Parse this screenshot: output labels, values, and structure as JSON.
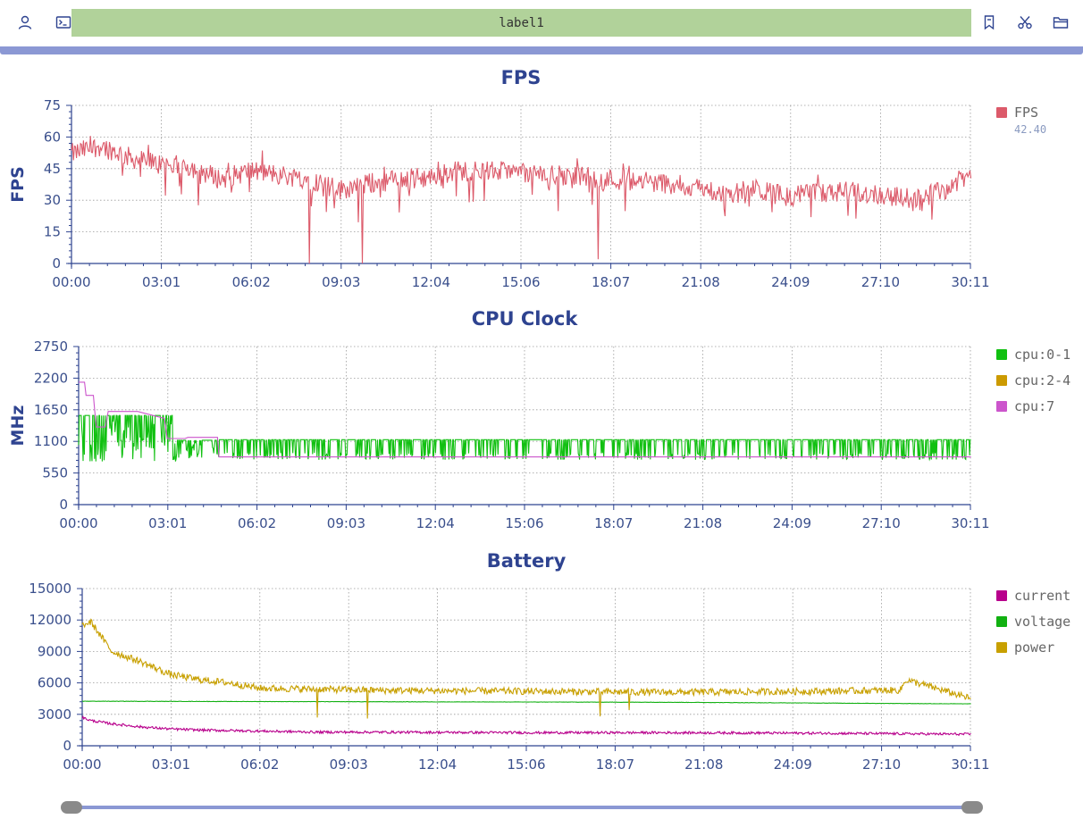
{
  "toolbar": {
    "label": "label1",
    "icons": [
      "user-icon",
      "terminal-icon",
      "bookmark-icon",
      "scissors-icon",
      "folder-icon"
    ]
  },
  "slider": {
    "start": 0.0,
    "end": 1.0
  },
  "chart_data": [
    {
      "type": "line",
      "title": "FPS",
      "ylabel": "FPS",
      "xlabel": "",
      "ylim": [
        0,
        75
      ],
      "yticks": [
        "0",
        "15",
        "30",
        "45",
        "60",
        "75"
      ],
      "xticks": [
        "00:00",
        "03:01",
        "06:02",
        "09:03",
        "12:04",
        "15:06",
        "18:07",
        "21:08",
        "24:09",
        "27:10",
        "30:11"
      ],
      "grid": true,
      "legend_position": "right",
      "series": [
        {
          "name": "FPS",
          "color": "#dc5a6a",
          "legend_value": "42.40",
          "x_minutes": [
            0,
            1,
            2,
            3,
            4,
            5,
            6,
            7,
            8,
            9,
            10,
            11,
            12,
            13,
            14,
            15,
            16,
            17,
            18,
            19,
            20,
            21,
            22,
            23,
            24,
            25,
            26,
            27,
            28,
            29,
            30.2
          ],
          "values": [
            52,
            56,
            50,
            47,
            46,
            40,
            44,
            42,
            40,
            35,
            38,
            40,
            41,
            44,
            44,
            43,
            42,
            41,
            40,
            39,
            38,
            36,
            33,
            35,
            32,
            33,
            34,
            33,
            31,
            33,
            42
          ],
          "dips": [
            {
              "x_minutes": 8.0,
              "value": 0
            },
            {
              "x_minutes": 9.75,
              "value": 0
            },
            {
              "x_minutes": 17.7,
              "value": 2
            }
          ]
        }
      ]
    },
    {
      "type": "line",
      "title": "CPU Clock",
      "ylabel": "MHz",
      "xlabel": "",
      "ylim": [
        0,
        2750
      ],
      "yticks": [
        "0",
        "550",
        "1100",
        "1650",
        "2200",
        "2750"
      ],
      "xticks": [
        "00:00",
        "03:01",
        "06:02",
        "09:03",
        "12:04",
        "15:06",
        "18:07",
        "21:08",
        "24:09",
        "27:10",
        "30:11"
      ],
      "grid": true,
      "legend_position": "right",
      "series": [
        {
          "name": "cpu:0-1",
          "color": "#11c011",
          "x_minutes": [
            0,
            0.5,
            1,
            2,
            3,
            3.3,
            4,
            5,
            6,
            10,
            15,
            20,
            25,
            30.2
          ],
          "values": [
            1600,
            1200,
            1500,
            1450,
            1550,
            1250,
            1050,
            1100,
            1100,
            1100,
            1100,
            1100,
            1100,
            1100
          ],
          "high": 1130,
          "low": 780
        },
        {
          "name": "cpu:2-4",
          "color": "#cc9a00",
          "x_minutes": [],
          "values": []
        },
        {
          "name": "cpu:7",
          "color": "#cc55cc",
          "x_minutes": [
            0,
            0.2,
            0.25,
            0.5,
            0.55,
            0.6,
            0.9,
            1.0,
            2.0,
            2.9,
            3.0,
            3.6,
            3.7,
            4.7,
            4.75,
            30.2
          ],
          "values": [
            2130,
            2130,
            1900,
            1900,
            1600,
            1350,
            1350,
            1620,
            1620,
            1500,
            1150,
            1150,
            1170,
            1170,
            830,
            830
          ]
        }
      ]
    },
    {
      "type": "line",
      "title": "Battery",
      "ylabel": "",
      "xlabel": "",
      "ylim": [
        0,
        15000
      ],
      "yticks": [
        "0",
        "3000",
        "6000",
        "9000",
        "12000",
        "15000"
      ],
      "xticks": [
        "00:00",
        "03:01",
        "06:02",
        "09:03",
        "12:04",
        "15:06",
        "18:07",
        "21:08",
        "24:09",
        "27:10",
        "30:11"
      ],
      "grid": true,
      "legend_position": "right",
      "series": [
        {
          "name": "current",
          "color": "#b8008c",
          "x_minutes": [
            0,
            0.3,
            1,
            2,
            3,
            4,
            6,
            8,
            10,
            15,
            20,
            25,
            30.2
          ],
          "values": [
            2700,
            2400,
            2100,
            1800,
            1600,
            1500,
            1400,
            1300,
            1300,
            1250,
            1250,
            1200,
            1100
          ]
        },
        {
          "name": "voltage",
          "color": "#11b011",
          "x_minutes": [
            0,
            10,
            20,
            30.2
          ],
          "values": [
            4250,
            4200,
            4150,
            4000
          ]
        },
        {
          "name": "power",
          "color": "#c8a000",
          "x_minutes": [
            0,
            0.3,
            1,
            2,
            3,
            4,
            5,
            6,
            8,
            10,
            15,
            20,
            25,
            27.8,
            28,
            30.2
          ],
          "values": [
            11500,
            11800,
            9000,
            8000,
            6800,
            6300,
            6000,
            5500,
            5400,
            5300,
            5200,
            5100,
            5200,
            5300,
            6300,
            4500
          ],
          "dips": [
            {
              "x_minutes": 8.0,
              "value": 2700
            },
            {
              "x_minutes": 9.7,
              "value": 2600
            },
            {
              "x_minutes": 17.6,
              "value": 2800
            },
            {
              "x_minutes": 18.6,
              "value": 3400
            }
          ]
        }
      ]
    }
  ]
}
